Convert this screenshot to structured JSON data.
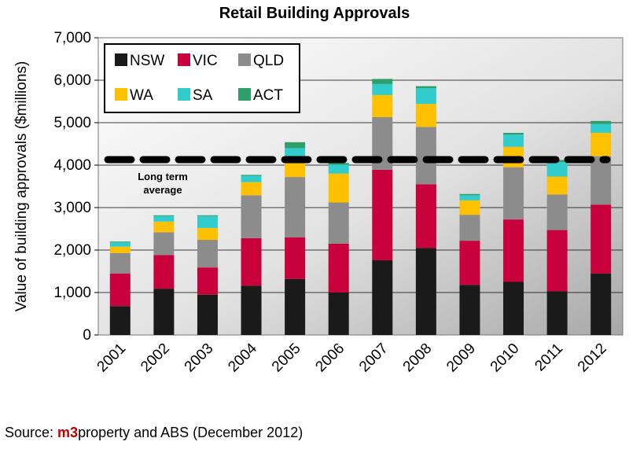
{
  "chart_data": {
    "type": "bar",
    "stacked": true,
    "title": "Retail Building Approvals",
    "ylabel": "Value of building approvals ($millions)",
    "xlabel": "",
    "ylim": [
      0,
      7000
    ],
    "yticks": [
      "0",
      "1,000",
      "2,000",
      "3,000",
      "4,000",
      "5,000",
      "6,000",
      "7,000"
    ],
    "ytick_values": [
      0,
      1000,
      2000,
      3000,
      4000,
      5000,
      6000,
      7000
    ],
    "grid": true,
    "legend_position": "top-left",
    "categories": [
      "2001",
      "2002",
      "2003",
      "2004",
      "2005",
      "2006",
      "2007",
      "2008",
      "2009",
      "2010",
      "2011",
      "2012"
    ],
    "series": [
      {
        "name": "NSW",
        "color": "#1a1a1a",
        "values": [
          680,
          1090,
          950,
          1160,
          1320,
          1000,
          1760,
          2050,
          1180,
          1250,
          1030,
          1450
        ]
      },
      {
        "name": "VIC",
        "color": "#c8003c",
        "values": [
          770,
          790,
          640,
          1120,
          980,
          1150,
          2130,
          1500,
          1040,
          1470,
          1440,
          1620
        ]
      },
      {
        "name": "QLD",
        "color": "#8c8c8c",
        "values": [
          480,
          540,
          650,
          1010,
          1420,
          970,
          1240,
          1350,
          610,
          1230,
          840,
          1140
        ]
      },
      {
        "name": "WA",
        "color": "#ffc000",
        "values": [
          150,
          250,
          280,
          310,
          380,
          680,
          520,
          540,
          340,
          480,
          420,
          550
        ]
      },
      {
        "name": "SA",
        "color": "#33cccc",
        "values": [
          100,
          130,
          280,
          150,
          300,
          210,
          260,
          370,
          120,
          290,
          340,
          210
        ]
      },
      {
        "name": "ACT",
        "color": "#2e9e6b",
        "values": [
          20,
          20,
          20,
          20,
          140,
          40,
          120,
          50,
          30,
          40,
          50,
          70
        ]
      }
    ],
    "reference_lines": [
      {
        "label": "Long term average",
        "value": 4130
      }
    ]
  },
  "annotation": {
    "line1": "Long term",
    "line2": "average"
  },
  "source": {
    "prefix": "Source: ",
    "brand": "m3",
    "suffix": "property and ABS (December 2012)"
  }
}
